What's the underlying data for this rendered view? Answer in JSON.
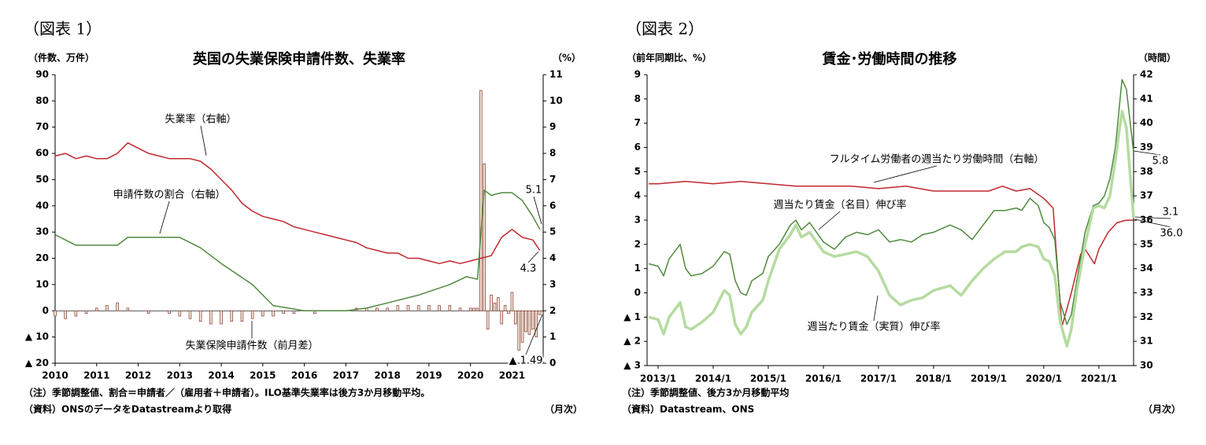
{
  "chart_data": [
    {
      "type": "combo",
      "figure_label": "（図表 1）",
      "title": "英国の失業保険申請件数、失業率",
      "y_label": "（件数、万件）",
      "y2_label": "（%）",
      "notes": [
        "（注）季節調整値、割合＝申請者／（雇用者＋申請者）。ILO基準失業率は後方3か月移動平均。",
        "（資料）ONSのデータをDatastreamより取得"
      ],
      "frequency_label": "（月次）",
      "xlim": [
        2010,
        2021.75
      ],
      "xticks": [
        2010,
        2011,
        2012,
        2013,
        2014,
        2015,
        2016,
        2017,
        2018,
        2019,
        2020,
        2021
      ],
      "ylim": [
        -20,
        90
      ],
      "yticks": [
        {
          "value": -20,
          "label": "▲ 20"
        },
        {
          "value": -10,
          "label": "▲ 10"
        },
        0,
        10,
        20,
        30,
        40,
        50,
        60,
        70,
        80,
        90
      ],
      "y2lim": [
        0,
        11
      ],
      "y2ticks": [
        0,
        1,
        2,
        3,
        4,
        5,
        6,
        7,
        8,
        9,
        10,
        11
      ],
      "series": [
        {
          "name": "失業保険申請件数（前月差）",
          "type": "bar",
          "color": "#8b4a3a",
          "x": [
            2010,
            2010.25,
            2010.5,
            2010.75,
            2011,
            2011.25,
            2011.5,
            2011.75,
            2012,
            2012.25,
            2012.5,
            2012.75,
            2013,
            2013.25,
            2013.5,
            2013.75,
            2014,
            2014.25,
            2014.5,
            2014.75,
            2015,
            2015.25,
            2015.5,
            2015.75,
            2016,
            2016.25,
            2016.5,
            2016.75,
            2017,
            2017.25,
            2017.5,
            2017.75,
            2018,
            2018.25,
            2018.5,
            2018.75,
            2019,
            2019.25,
            2019.5,
            2019.75,
            2020,
            2020.083,
            2020.167,
            2020.25,
            2020.333,
            2020.417,
            2020.5,
            2020.583,
            2020.667,
            2020.75,
            2020.833,
            2020.917,
            2021,
            2021.083,
            2021.167,
            2021.25,
            2021.333,
            2021.417,
            2021.5,
            2021.583,
            2021.667
          ],
          "values": [
            -2,
            -3,
            -2,
            -1,
            1,
            2,
            3,
            1,
            0,
            -1,
            0,
            -1,
            -2,
            -3,
            -4,
            -5,
            -5,
            -4,
            -4,
            -3,
            -2,
            -2,
            -1,
            -1,
            0,
            -1,
            0,
            0,
            0,
            1,
            1,
            1,
            1,
            2,
            2,
            2,
            2,
            2,
            2,
            1,
            1,
            1,
            1,
            84,
            56,
            -7,
            6,
            3,
            5,
            -5,
            2,
            -1,
            7,
            -5,
            -15,
            -12,
            -8,
            -9,
            -7,
            -10,
            -1.49
          ]
        },
        {
          "name": "失業率（右軸）",
          "type": "line",
          "axis": "y2",
          "color": "#c0282c",
          "x": [
            2010,
            2010.25,
            2010.5,
            2010.75,
            2011,
            2011.25,
            2011.5,
            2011.75,
            2012,
            2012.25,
            2012.5,
            2012.75,
            2013,
            2013.25,
            2013.5,
            2013.75,
            2014,
            2014.25,
            2014.5,
            2014.75,
            2015,
            2015.25,
            2015.5,
            2015.75,
            2016,
            2016.25,
            2016.5,
            2016.75,
            2017,
            2017.25,
            2017.5,
            2017.75,
            2018,
            2018.25,
            2018.5,
            2018.75,
            2019,
            2019.25,
            2019.5,
            2019.75,
            2020,
            2020.25,
            2020.5,
            2020.75,
            2021,
            2021.25,
            2021.5,
            2021.67
          ],
          "values": [
            7.9,
            8.0,
            7.8,
            7.9,
            7.8,
            7.8,
            8.0,
            8.4,
            8.2,
            8.0,
            7.9,
            7.8,
            7.8,
            7.8,
            7.7,
            7.4,
            7.0,
            6.6,
            6.1,
            5.8,
            5.6,
            5.5,
            5.4,
            5.2,
            5.1,
            5.0,
            4.9,
            4.8,
            4.7,
            4.6,
            4.4,
            4.3,
            4.2,
            4.2,
            4.0,
            4.0,
            3.9,
            3.8,
            3.9,
            3.8,
            3.9,
            4.0,
            4.1,
            4.8,
            5.1,
            4.8,
            4.7,
            4.3
          ]
        },
        {
          "name": "申請件数の割合（右軸）",
          "type": "line",
          "axis": "y2",
          "color": "#4e8a3c",
          "x": [
            2010,
            2010.5,
            2011,
            2011.5,
            2011.75,
            2012.5,
            2013,
            2013.5,
            2014,
            2014.75,
            2015.25,
            2016,
            2017,
            2017.5,
            2018,
            2018.75,
            2019.5,
            2019.9,
            2020.17,
            2020.25,
            2020.33,
            2020.5,
            2020.75,
            2021,
            2021.25,
            2021.5,
            2021.67
          ],
          "values": [
            4.9,
            4.5,
            4.5,
            4.5,
            4.8,
            4.8,
            4.8,
            4.4,
            3.8,
            3.0,
            2.2,
            2.0,
            2.0,
            2.1,
            2.3,
            2.6,
            3.0,
            3.3,
            3.2,
            5.0,
            6.6,
            6.4,
            6.5,
            6.5,
            6.2,
            5.6,
            5.1
          ]
        }
      ],
      "annotations": [
        "失業率（右軸）",
        "申請件数の割合（右軸）",
        "失業保険申請件数（前月差）",
        "5.1",
        "4.3",
        "▲ 1.49"
      ]
    },
    {
      "type": "combo",
      "figure_label": "（図表 2）",
      "title": "賃金･労働時間の推移",
      "y_label": "（前年同期比、%）",
      "y2_label": "（時間）",
      "notes": [
        "（注）季節調整値、後方3か月移動平均",
        "（資料）Datastream、ONS"
      ],
      "frequency_label": "（月次）",
      "xlim": [
        2012.8,
        2021.63
      ],
      "xticks": [
        {
          "value": 2013,
          "label": "2013/1"
        },
        {
          "value": 2014,
          "label": "2014/1"
        },
        {
          "value": 2015,
          "label": "2015/1"
        },
        {
          "value": 2016,
          "label": "2016/1"
        },
        {
          "value": 2017,
          "label": "2017/1"
        },
        {
          "value": 2018,
          "label": "2018/1"
        },
        {
          "value": 2019,
          "label": "2019/1"
        },
        {
          "value": 2020,
          "label": "2020/1"
        },
        {
          "value": 2021,
          "label": "2021/1"
        }
      ],
      "ylim": [
        -3,
        9
      ],
      "yticks": [
        {
          "value": -3,
          "label": "▲ 3"
        },
        {
          "value": -2,
          "label": "▲ 2"
        },
        {
          "value": -1,
          "label": "▲ 1"
        },
        0,
        1,
        2,
        3,
        4,
        5,
        6,
        7,
        8,
        9
      ],
      "y2lim": [
        30,
        42
      ],
      "y2ticks": [
        30,
        31,
        32,
        33,
        34,
        35,
        36,
        37,
        38,
        39,
        40,
        41,
        42
      ],
      "series": [
        {
          "name": "フルタイム労働者の週当たり労働時間（右軸）",
          "type": "line",
          "axis": "y2",
          "color": "#c0282c",
          "x": [
            2012.83,
            2013,
            2013.5,
            2014,
            2014.5,
            2015,
            2015.5,
            2016,
            2016.5,
            2017,
            2017.5,
            2018,
            2018.5,
            2019,
            2019.25,
            2019.5,
            2019.75,
            2020,
            2020.17,
            2020.25,
            2020.33,
            2020.5,
            2020.67,
            2020.75,
            2020.92,
            2021,
            2021.17,
            2021.33,
            2021.5,
            2021.63
          ],
          "values": [
            37.5,
            37.5,
            37.6,
            37.5,
            37.6,
            37.5,
            37.4,
            37.4,
            37.4,
            37.3,
            37.4,
            37.2,
            37.2,
            37.2,
            37.4,
            37.2,
            37.3,
            36.9,
            36.5,
            34.0,
            31.6,
            33.0,
            34.6,
            34.8,
            34.2,
            34.8,
            35.5,
            35.9,
            36.0,
            36.0
          ]
        },
        {
          "name": "週当たり賃金（名目）伸び率",
          "type": "line",
          "color": "#4e8a3c",
          "x": [
            2012.83,
            2013.0,
            2013.1,
            2013.2,
            2013.4,
            2013.5,
            2013.6,
            2013.8,
            2014.0,
            2014.2,
            2014.3,
            2014.4,
            2014.5,
            2014.6,
            2014.7,
            2014.9,
            2015.0,
            2015.2,
            2015.4,
            2015.5,
            2015.6,
            2015.75,
            2016.0,
            2016.2,
            2016.4,
            2016.6,
            2016.8,
            2017.0,
            2017.2,
            2017.4,
            2017.6,
            2017.8,
            2018.0,
            2018.3,
            2018.5,
            2018.7,
            2018.9,
            2019.1,
            2019.3,
            2019.5,
            2019.6,
            2019.75,
            2019.9,
            2020.0,
            2020.1,
            2020.2,
            2020.3,
            2020.42,
            2020.5,
            2020.6,
            2020.75,
            2020.9,
            2021.0,
            2021.1,
            2021.2,
            2021.3,
            2021.42,
            2021.5,
            2021.63
          ],
          "values": [
            1.2,
            1.1,
            0.7,
            1.4,
            2.0,
            1.0,
            0.7,
            0.8,
            1.1,
            1.7,
            1.6,
            0.5,
            0.0,
            -0.1,
            0.5,
            0.8,
            1.5,
            2.0,
            2.8,
            3.0,
            2.6,
            2.9,
            2.1,
            1.8,
            2.3,
            2.5,
            2.4,
            2.6,
            2.1,
            2.2,
            2.1,
            2.4,
            2.5,
            2.8,
            2.6,
            2.2,
            2.8,
            3.4,
            3.4,
            3.5,
            3.4,
            3.9,
            3.6,
            2.9,
            2.7,
            2.2,
            -0.4,
            -1.3,
            -0.9,
            0.5,
            2.5,
            3.6,
            3.7,
            4.0,
            4.7,
            6.0,
            8.8,
            8.4,
            5.8
          ]
        },
        {
          "name": "週当たり賃金（実質）伸び率",
          "type": "line",
          "color": "#b5dba0",
          "x": [
            2012.83,
            2013.0,
            2013.1,
            2013.2,
            2013.4,
            2013.5,
            2013.6,
            2013.8,
            2014.0,
            2014.2,
            2014.3,
            2014.4,
            2014.5,
            2014.6,
            2014.7,
            2014.9,
            2015.0,
            2015.2,
            2015.4,
            2015.5,
            2015.6,
            2015.75,
            2016.0,
            2016.2,
            2016.4,
            2016.6,
            2016.8,
            2017.0,
            2017.2,
            2017.4,
            2017.6,
            2017.8,
            2018.0,
            2018.3,
            2018.5,
            2018.7,
            2018.9,
            2019.1,
            2019.3,
            2019.5,
            2019.6,
            2019.75,
            2019.9,
            2020.0,
            2020.1,
            2020.2,
            2020.3,
            2020.42,
            2020.5,
            2020.6,
            2020.75,
            2020.9,
            2021.0,
            2021.1,
            2021.2,
            2021.3,
            2021.42,
            2021.5,
            2021.63
          ],
          "values": [
            -1.0,
            -1.1,
            -1.7,
            -1.0,
            -0.4,
            -1.4,
            -1.5,
            -1.2,
            -0.8,
            0.1,
            -0.1,
            -1.3,
            -1.7,
            -1.4,
            -0.8,
            -0.3,
            0.5,
            1.8,
            2.4,
            2.8,
            2.3,
            2.5,
            1.7,
            1.5,
            1.6,
            1.7,
            1.5,
            0.9,
            -0.1,
            -0.5,
            -0.3,
            -0.2,
            0.1,
            0.3,
            -0.1,
            0.5,
            1.0,
            1.4,
            1.7,
            1.7,
            1.9,
            2.0,
            1.9,
            1.4,
            1.3,
            0.7,
            -1.2,
            -2.2,
            -1.5,
            0.1,
            2.0,
            3.5,
            3.6,
            3.5,
            4.0,
            5.5,
            7.5,
            6.8,
            3.1
          ]
        }
      ],
      "annotations": [
        "フルタイム労働者の週当たり労働時間（右軸）",
        "週当たり賃金（名目）伸び率",
        "週当たり賃金（実質）伸び率",
        "5.8",
        "3.1",
        "36.0"
      ]
    }
  ]
}
